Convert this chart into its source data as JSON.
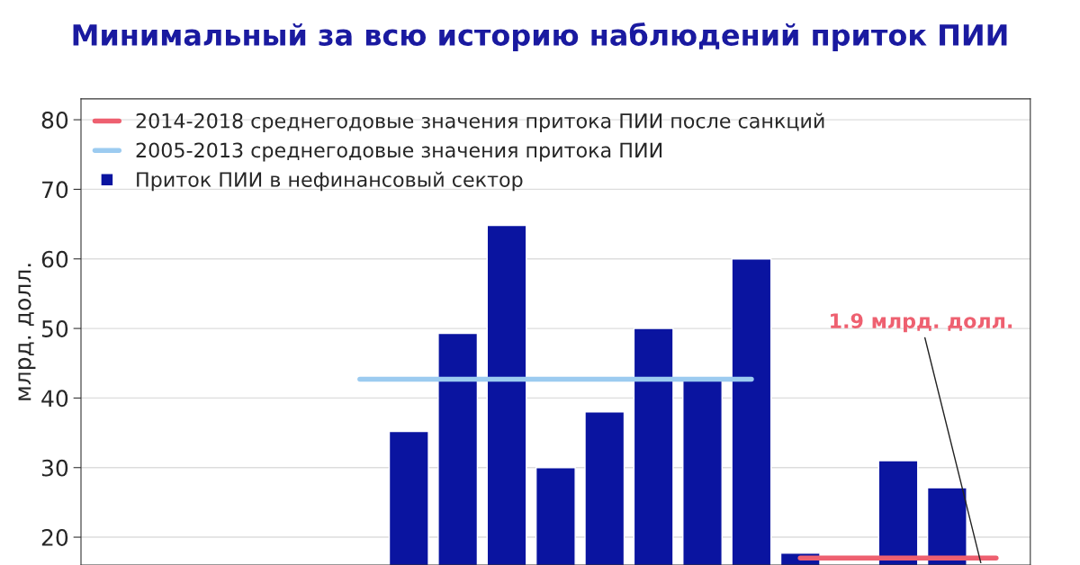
{
  "chart_data": {
    "type": "bar",
    "title": "Минимальный за всю историю наблюдений приток ПИИ",
    "ylabel": "млрд. долл.",
    "categories": [
      null,
      null,
      null,
      null,
      null,
      null,
      null,
      null,
      null,
      null,
      null,
      null,
      null,
      null,
      null,
      null,
      null,
      null,
      null
    ],
    "series": [
      {
        "name": "2014-2018 среднегодовые значения притока ПИИ после санкций",
        "type": "line",
        "color": "#ee6070",
        "values": [
          null,
          null,
          null,
          null,
          null,
          null,
          null,
          null,
          null,
          null,
          null,
          null,
          null,
          null,
          17,
          17,
          17,
          17,
          17
        ]
      },
      {
        "name": "2005-2013 среднегодовые значения притока ПИИ",
        "type": "line",
        "color": "#9ccbf0",
        "values": [
          null,
          null,
          null,
          null,
          null,
          42.7,
          42.7,
          42.7,
          42.7,
          42.7,
          42.7,
          42.7,
          42.7,
          42.7,
          null,
          null,
          null,
          null,
          null
        ]
      },
      {
        "name": "Приток ПИИ в нефинансовый сектор",
        "color": "#0a14a0",
        "values": [
          null,
          null,
          null,
          null,
          null,
          null,
          35.2,
          49.3,
          64.8,
          30,
          38,
          50,
          42.5,
          60,
          17.7,
          null,
          31,
          27.1,
          null
        ]
      }
    ],
    "ylim": [
      16,
      83
    ],
    "yticks": [
      20,
      30,
      40,
      50,
      60,
      70,
      80
    ],
    "grid": "y",
    "legend": "top left",
    "annotations": [
      "1.9 млрд. долл."
    ]
  }
}
